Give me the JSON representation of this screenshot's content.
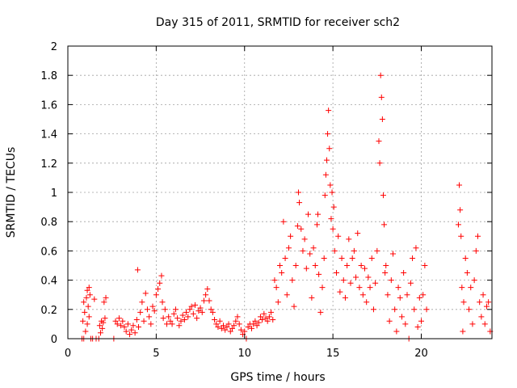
{
  "chart_data": {
    "type": "scatter",
    "title": "Day 315 of 2011, SRMTID for receiver sch2",
    "xlabel": "GPS time / hours",
    "ylabel": "SRMTID / TECUs",
    "xlim": [
      0,
      24
    ],
    "ylim": [
      0,
      2
    ],
    "x_ticks": [
      "0",
      "5",
      "10",
      "15",
      "20"
    ],
    "y_ticks": [
      "0",
      "0.2",
      "0.4",
      "0.6",
      "0.8",
      "1",
      "1.2",
      "1.4",
      "1.6",
      "1.8",
      "2"
    ],
    "grid": true,
    "marker": "+",
    "colors": {
      "series": "#ff0000",
      "grid": "#a0a0a0",
      "axes": "#000000"
    },
    "series": [
      {
        "values": [
          [
            0.8,
            0.0
          ],
          [
            0.9,
            0.0
          ],
          [
            0.85,
            0.12
          ],
          [
            0.9,
            0.25
          ],
          [
            0.95,
            0.18
          ],
          [
            1.0,
            0.05
          ],
          [
            1.05,
            0.28
          ],
          [
            1.1,
            0.33
          ],
          [
            1.15,
            0.22
          ],
          [
            1.2,
            0.35
          ],
          [
            1.25,
            0.3
          ],
          [
            1.1,
            0.1
          ],
          [
            1.2,
            0.15
          ],
          [
            1.3,
            0.0
          ],
          [
            1.4,
            0.0
          ],
          [
            1.5,
            0.27
          ],
          [
            1.6,
            0.0
          ],
          [
            1.75,
            0.0
          ],
          [
            1.8,
            0.09
          ],
          [
            1.9,
            0.12
          ],
          [
            1.95,
            0.07
          ],
          [
            2.0,
            0.11
          ],
          [
            2.1,
            0.14
          ],
          [
            2.15,
            0.28
          ],
          [
            2.05,
            0.25
          ],
          [
            1.85,
            0.04
          ],
          [
            2.6,
            0.0
          ],
          [
            2.7,
            0.12
          ],
          [
            2.8,
            0.1
          ],
          [
            2.9,
            0.14
          ],
          [
            3.0,
            0.09
          ],
          [
            3.1,
            0.12
          ],
          [
            3.2,
            0.08
          ],
          [
            3.3,
            0.05
          ],
          [
            3.4,
            0.1
          ],
          [
            3.5,
            0.03
          ],
          [
            3.6,
            0.06
          ],
          [
            3.7,
            0.09
          ],
          [
            3.8,
            0.04
          ],
          [
            3.9,
            0.13
          ],
          [
            4.0,
            0.08
          ],
          [
            3.95,
            0.47
          ],
          [
            4.1,
            0.18
          ],
          [
            4.2,
            0.25
          ],
          [
            4.3,
            0.12
          ],
          [
            4.4,
            0.31
          ],
          [
            4.5,
            0.2
          ],
          [
            4.6,
            0.15
          ],
          [
            4.7,
            0.1
          ],
          [
            4.8,
            0.22
          ],
          [
            4.9,
            0.19
          ],
          [
            5.0,
            0.3
          ],
          [
            5.1,
            0.34
          ],
          [
            5.2,
            0.38
          ],
          [
            5.3,
            0.43
          ],
          [
            5.35,
            0.25
          ],
          [
            5.4,
            0.14
          ],
          [
            5.5,
            0.2
          ],
          [
            5.6,
            0.1
          ],
          [
            5.7,
            0.15
          ],
          [
            5.8,
            0.12
          ],
          [
            5.9,
            0.1
          ],
          [
            6.0,
            0.17
          ],
          [
            6.1,
            0.2
          ],
          [
            6.2,
            0.14
          ],
          [
            6.3,
            0.09
          ],
          [
            6.4,
            0.12
          ],
          [
            6.5,
            0.16
          ],
          [
            6.6,
            0.13
          ],
          [
            6.7,
            0.18
          ],
          [
            6.8,
            0.15
          ],
          [
            6.9,
            0.2
          ],
          [
            7.0,
            0.22
          ],
          [
            7.1,
            0.17
          ],
          [
            7.2,
            0.23
          ],
          [
            7.3,
            0.14
          ],
          [
            7.4,
            0.19
          ],
          [
            7.5,
            0.21
          ],
          [
            7.6,
            0.18
          ],
          [
            7.7,
            0.26
          ],
          [
            7.8,
            0.3
          ],
          [
            7.9,
            0.34
          ],
          [
            8.0,
            0.26
          ],
          [
            8.1,
            0.2
          ],
          [
            8.2,
            0.18
          ],
          [
            8.3,
            0.13
          ],
          [
            8.4,
            0.1
          ],
          [
            8.5,
            0.08
          ],
          [
            8.6,
            0.12
          ],
          [
            8.7,
            0.07
          ],
          [
            8.8,
            0.09
          ],
          [
            8.9,
            0.06
          ],
          [
            9.0,
            0.08
          ],
          [
            9.1,
            0.1
          ],
          [
            9.2,
            0.05
          ],
          [
            9.3,
            0.07
          ],
          [
            9.4,
            0.09
          ],
          [
            9.5,
            0.12
          ],
          [
            9.6,
            0.15
          ],
          [
            9.7,
            0.1
          ],
          [
            9.8,
            0.06
          ],
          [
            9.9,
            0.03
          ],
          [
            10.0,
            0.05
          ],
          [
            10.1,
            0.0
          ],
          [
            10.2,
            0.08
          ],
          [
            10.3,
            0.1
          ],
          [
            10.4,
            0.07
          ],
          [
            10.5,
            0.1
          ],
          [
            10.6,
            0.12
          ],
          [
            10.7,
            0.09
          ],
          [
            10.8,
            0.11
          ],
          [
            10.9,
            0.15
          ],
          [
            11.0,
            0.13
          ],
          [
            11.1,
            0.17
          ],
          [
            11.2,
            0.14
          ],
          [
            11.3,
            0.12
          ],
          [
            11.4,
            0.15
          ],
          [
            11.5,
            0.18
          ],
          [
            11.6,
            0.13
          ],
          [
            11.7,
            0.4
          ],
          [
            11.8,
            0.35
          ],
          [
            11.9,
            0.25
          ],
          [
            12.0,
            0.5
          ],
          [
            12.1,
            0.45
          ],
          [
            12.2,
            0.8
          ],
          [
            12.3,
            0.55
          ],
          [
            12.4,
            0.3
          ],
          [
            12.5,
            0.62
          ],
          [
            12.6,
            0.7
          ],
          [
            12.7,
            0.4
          ],
          [
            12.8,
            0.22
          ],
          [
            12.9,
            0.5
          ],
          [
            13.0,
            0.77
          ],
          [
            13.05,
            1.0
          ],
          [
            13.1,
            0.93
          ],
          [
            13.2,
            0.75
          ],
          [
            13.3,
            0.6
          ],
          [
            13.4,
            0.68
          ],
          [
            13.5,
            0.48
          ],
          [
            13.6,
            0.85
          ],
          [
            13.7,
            0.58
          ],
          [
            13.8,
            0.28
          ],
          [
            13.9,
            0.62
          ],
          [
            14.0,
            0.5
          ],
          [
            14.1,
            0.78
          ],
          [
            14.15,
            0.85
          ],
          [
            14.2,
            0.44
          ],
          [
            14.3,
            0.18
          ],
          [
            14.4,
            0.35
          ],
          [
            14.5,
            0.55
          ],
          [
            14.55,
            0.98
          ],
          [
            14.6,
            1.12
          ],
          [
            14.65,
            1.22
          ],
          [
            14.7,
            1.4
          ],
          [
            14.75,
            1.56
          ],
          [
            14.8,
            1.3
          ],
          [
            14.85,
            1.05
          ],
          [
            14.9,
            0.82
          ],
          [
            14.95,
            1.0
          ],
          [
            15.0,
            0.75
          ],
          [
            15.05,
            0.9
          ],
          [
            15.1,
            0.6
          ],
          [
            15.2,
            0.45
          ],
          [
            15.3,
            0.7
          ],
          [
            15.4,
            0.32
          ],
          [
            15.5,
            0.55
          ],
          [
            15.6,
            0.4
          ],
          [
            15.7,
            0.28
          ],
          [
            15.8,
            0.5
          ],
          [
            15.9,
            0.68
          ],
          [
            16.0,
            0.38
          ],
          [
            16.1,
            0.55
          ],
          [
            16.2,
            0.6
          ],
          [
            16.3,
            0.42
          ],
          [
            16.4,
            0.72
          ],
          [
            16.5,
            0.35
          ],
          [
            16.6,
            0.5
          ],
          [
            16.7,
            0.3
          ],
          [
            16.8,
            0.48
          ],
          [
            16.9,
            0.25
          ],
          [
            17.0,
            0.42
          ],
          [
            17.1,
            0.35
          ],
          [
            17.2,
            0.55
          ],
          [
            17.3,
            0.2
          ],
          [
            17.4,
            0.38
          ],
          [
            17.5,
            0.6
          ],
          [
            17.6,
            1.35
          ],
          [
            17.65,
            1.2
          ],
          [
            17.7,
            1.8
          ],
          [
            17.75,
            1.65
          ],
          [
            17.8,
            1.5
          ],
          [
            17.85,
            0.98
          ],
          [
            17.9,
            0.78
          ],
          [
            17.95,
            0.45
          ],
          [
            18.0,
            0.5
          ],
          [
            18.1,
            0.3
          ],
          [
            18.2,
            0.12
          ],
          [
            18.3,
            0.4
          ],
          [
            18.4,
            0.58
          ],
          [
            18.5,
            0.2
          ],
          [
            18.6,
            0.05
          ],
          [
            18.7,
            0.35
          ],
          [
            18.8,
            0.28
          ],
          [
            18.9,
            0.15
          ],
          [
            19.0,
            0.45
          ],
          [
            19.1,
            0.1
          ],
          [
            19.2,
            0.3
          ],
          [
            19.3,
            0.0
          ],
          [
            19.4,
            0.38
          ],
          [
            19.5,
            0.55
          ],
          [
            19.6,
            0.2
          ],
          [
            19.7,
            0.62
          ],
          [
            19.8,
            0.08
          ],
          [
            19.9,
            0.28
          ],
          [
            20.0,
            0.12
          ],
          [
            20.1,
            0.3
          ],
          [
            20.2,
            0.5
          ],
          [
            20.3,
            0.2
          ],
          [
            22.1,
            0.78
          ],
          [
            22.15,
            1.05
          ],
          [
            22.2,
            0.88
          ],
          [
            22.25,
            0.7
          ],
          [
            22.3,
            0.35
          ],
          [
            22.35,
            0.05
          ],
          [
            22.4,
            0.25
          ],
          [
            22.5,
            0.55
          ],
          [
            22.6,
            0.45
          ],
          [
            22.7,
            0.2
          ],
          [
            22.8,
            0.35
          ],
          [
            22.9,
            0.1
          ],
          [
            23.0,
            0.4
          ],
          [
            23.1,
            0.6
          ],
          [
            23.2,
            0.7
          ],
          [
            23.3,
            0.25
          ],
          [
            23.4,
            0.15
          ],
          [
            23.5,
            0.3
          ],
          [
            23.6,
            0.1
          ],
          [
            23.7,
            0.22
          ],
          [
            23.8,
            0.25
          ],
          [
            23.9,
            0.05
          ]
        ]
      }
    ]
  }
}
